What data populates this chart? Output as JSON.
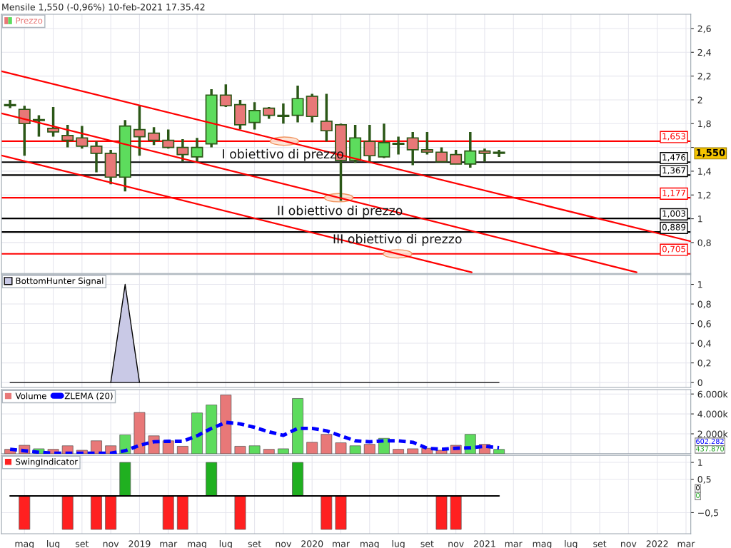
{
  "chart_data": [
    {
      "type": "candlestick",
      "title": "Mensile 1,550 (-0,96%) 10-feb-2021 17.35.42",
      "x": [
        "2018-04",
        "2018-05",
        "2018-06",
        "2018-07",
        "2018-08",
        "2018-09",
        "2018-10",
        "2018-11",
        "2018-12",
        "2019-01",
        "2019-02",
        "2019-03",
        "2019-04",
        "2019-05",
        "2019-06",
        "2019-07",
        "2019-08",
        "2019-09",
        "2019-10",
        "2019-11",
        "2019-12",
        "2020-01",
        "2020-02",
        "2020-03",
        "2020-04",
        "2020-05",
        "2020-06",
        "2020-07",
        "2020-08",
        "2020-09",
        "2020-10",
        "2020-11",
        "2020-12",
        "2021-01",
        "2021-02"
      ],
      "series": [
        {
          "type": "candlestick",
          "name": "Prezzo",
          "color": "#e87878",
          "ohlc": [
            [
              1.96,
              2.0,
              1.93,
              1.95
            ],
            [
              1.92,
              1.95,
              1.53,
              1.8
            ],
            [
              1.83,
              1.87,
              1.69,
              1.83
            ],
            [
              1.76,
              1.94,
              1.69,
              1.73
            ],
            [
              1.7,
              1.79,
              1.6,
              1.66
            ],
            [
              1.68,
              1.78,
              1.59,
              1.61
            ],
            [
              1.61,
              1.65,
              1.39,
              1.55
            ],
            [
              1.55,
              1.58,
              1.29,
              1.35
            ],
            [
              1.35,
              1.83,
              1.23,
              1.78
            ],
            [
              1.75,
              1.95,
              1.53,
              1.69
            ],
            [
              1.72,
              1.77,
              1.62,
              1.66
            ],
            [
              1.66,
              1.75,
              1.59,
              1.6
            ],
            [
              1.6,
              1.67,
              1.48,
              1.54
            ],
            [
              1.52,
              1.68,
              1.48,
              1.6
            ],
            [
              1.63,
              2.09,
              1.6,
              2.04
            ],
            [
              2.04,
              2.13,
              1.94,
              1.95
            ],
            [
              1.96,
              2.0,
              1.75,
              1.79
            ],
            [
              1.81,
              1.98,
              1.75,
              1.91
            ],
            [
              1.93,
              1.94,
              1.84,
              1.87
            ],
            [
              1.86,
              1.97,
              1.8,
              1.87
            ],
            [
              1.87,
              2.12,
              1.81,
              2.01
            ],
            [
              2.03,
              2.05,
              1.81,
              1.86
            ],
            [
              1.82,
              2.05,
              1.65,
              1.74
            ],
            [
              1.79,
              1.8,
              1.15,
              1.49
            ],
            [
              1.49,
              1.79,
              1.47,
              1.68
            ],
            [
              1.65,
              1.79,
              1.47,
              1.53
            ],
            [
              1.52,
              1.8,
              1.51,
              1.64
            ],
            [
              1.63,
              1.69,
              1.54,
              1.63
            ],
            [
              1.68,
              1.73,
              1.45,
              1.58
            ],
            [
              1.58,
              1.73,
              1.54,
              1.56
            ],
            [
              1.56,
              1.6,
              1.48,
              1.48
            ],
            [
              1.54,
              1.58,
              1.46,
              1.46
            ],
            [
              1.46,
              1.73,
              1.43,
              1.57
            ],
            [
              1.57,
              1.59,
              1.48,
              1.55
            ],
            [
              1.56,
              1.58,
              1.52,
              1.55
            ]
          ],
          "colors": [
            "#e87878",
            "#e87878",
            "#e87878",
            "#e87878",
            "#e87878",
            "#e87878",
            "#e87878",
            "#e87878",
            "#5ddc5d",
            "#e87878",
            "#e87878",
            "#e87878",
            "#e87878",
            "#5ddc5d",
            "#5ddc5d",
            "#e87878",
            "#e87878",
            "#5ddc5d",
            "#e87878",
            "#5ddc5d",
            "#5ddc5d",
            "#e87878",
            "#e87878",
            "#e87878",
            "#5ddc5d",
            "#e87878",
            "#5ddc5d",
            "#e87878",
            "#e87878",
            "#e87878",
            "#e87878",
            "#e87878",
            "#5ddc5d",
            "#e87878",
            "#e87878"
          ]
        },
        {
          "type": "line",
          "color": "#ff0000",
          "x": [
            "2018-03-13",
            "2022-03-11"
          ],
          "values": [
            2.24,
            0.81
          ]
        },
        {
          "type": "line",
          "color": "#ff0000",
          "x": [
            "2018-03-13",
            "2021-11-18"
          ],
          "values": [
            1.887,
            0.55
          ]
        },
        {
          "type": "line",
          "color": "#ff0000",
          "x": [
            "2018-03-13",
            "2020-12-04"
          ],
          "values": [
            1.533,
            0.55
          ]
        }
      ],
      "ref_lines": [
        {
          "axis": "y",
          "value": 1.653,
          "label": "1,653",
          "color": "#ff0000"
        },
        {
          "axis": "y",
          "value": 1.476,
          "label": "1,476",
          "color": "#000000"
        },
        {
          "axis": "y",
          "value": 1.367,
          "label": "1,367",
          "color": "#000000"
        },
        {
          "axis": "y",
          "value": 1.177,
          "label": "1,177",
          "color": "#ff0000"
        },
        {
          "axis": "y",
          "value": 1.003,
          "label": "1,003",
          "color": "#000000"
        },
        {
          "axis": "y",
          "value": 0.889,
          "label": "0,889",
          "color": "#000000"
        },
        {
          "axis": "y",
          "value": 0.705,
          "label": "0,705",
          "color": "#ff0000"
        }
      ],
      "annotations": [
        {
          "text": "I obiettivo di prezzo",
          "x": "2019-10-30",
          "y": 1.653
        },
        {
          "text": "II obiettivo di prezzo",
          "x": "2020-02-29",
          "y": 1.177
        },
        {
          "text": "III obiettivo di prezzo",
          "x": "2020-06-29",
          "y": 0.705
        },
        "1,550"
      ],
      "xlim": [
        "2018-03-13",
        "2022-03-11"
      ],
      "ylim": [
        0.54,
        2.72
      ],
      "yticks": [
        {
          "value": 0.8,
          "label": "0,8"
        },
        1,
        {
          "value": 1.2,
          "label": "1,2"
        },
        {
          "value": 1.4,
          "label": "1,4"
        },
        {
          "value": 1.6,
          "label": null
        },
        {
          "value": 1.8,
          "label": "1,8"
        },
        2,
        {
          "value": 2.2,
          "label": "2,2"
        },
        {
          "value": 2.4,
          "label": "2,4"
        },
        {
          "value": 2.6,
          "label": "2,6"
        }
      ],
      "tick_labels": "y",
      "grid": true,
      "legend": "top left"
    },
    {
      "type": "area",
      "x": [
        "2018-04",
        "2018-05",
        "2018-06",
        "2018-07",
        "2018-08",
        "2018-09",
        "2018-10",
        "2018-11",
        "2018-12",
        "2019-01",
        "2019-02",
        "2019-03",
        "2019-04",
        "2019-05",
        "2019-06",
        "2019-07",
        "2019-08",
        "2019-09",
        "2019-10",
        "2019-11",
        "2019-12",
        "2020-01",
        "2020-02",
        "2020-03",
        "2020-04",
        "2020-05",
        "2020-06",
        "2020-07",
        "2020-08",
        "2020-09",
        "2020-10",
        "2020-11",
        "2020-12",
        "2021-01",
        "2021-02"
      ],
      "series": [
        {
          "name": "BottomHunter Signal",
          "color": "#c9c9e6",
          "values": [
            0,
            0,
            0,
            0,
            0,
            0,
            0,
            0,
            1,
            0,
            0,
            0,
            0,
            0,
            0,
            0,
            0,
            0,
            0,
            0,
            0,
            0,
            0,
            0,
            0,
            0,
            0,
            0,
            0,
            0,
            0,
            0,
            0,
            0,
            0
          ]
        }
      ],
      "xlim": [
        "2018-03-13",
        "2022-03-11"
      ],
      "ylim": [
        -0.05,
        1.1
      ],
      "yticks": [
        0,
        {
          "value": 0.2,
          "label": "0,2"
        },
        {
          "value": 0.4,
          "label": "0,4"
        },
        {
          "value": 0.6,
          "label": "0,6"
        },
        {
          "value": 0.8,
          "label": "0,8"
        },
        1
      ],
      "tick_labels": "y",
      "grid": true,
      "legend": "top left"
    },
    {
      "type": "bar",
      "x": [
        "2018-04",
        "2018-05",
        "2018-06",
        "2018-07",
        "2018-08",
        "2018-09",
        "2018-10",
        "2018-11",
        "2018-12",
        "2019-01",
        "2019-02",
        "2019-03",
        "2019-04",
        "2019-05",
        "2019-06",
        "2019-07",
        "2019-08",
        "2019-09",
        "2019-10",
        "2019-11",
        "2019-12",
        "2020-01",
        "2020-02",
        "2020-03",
        "2020-04",
        "2020-05",
        "2020-06",
        "2020-07",
        "2020-08",
        "2020-09",
        "2020-10",
        "2020-11",
        "2020-12",
        "2021-01",
        "2021-02"
      ],
      "series": [
        {
          "type": "bar",
          "name": "Volume",
          "values": [
            450,
            850,
            500,
            450,
            800,
            350,
            1300,
            800,
            1900,
            4150,
            1800,
            1300,
            750,
            4100,
            4900,
            5900,
            750,
            800,
            450,
            500,
            5550,
            1150,
            1950,
            1100,
            800,
            950,
            1550,
            450,
            500,
            550,
            350,
            850,
            1950,
            950,
            437.87
          ],
          "colors": [
            "#e87878",
            "#e87878",
            "#5ddc5d",
            "#e87878",
            "#e87878",
            "#e87878",
            "#e87878",
            "#e87878",
            "#5ddc5d",
            "#e87878",
            "#e87878",
            "#e87878",
            "#e87878",
            "#5ddc5d",
            "#5ddc5d",
            "#e87878",
            "#e87878",
            "#5ddc5d",
            "#e87878",
            "#5ddc5d",
            "#5ddc5d",
            "#e87878",
            "#e87878",
            "#e87878",
            "#5ddc5d",
            "#e87878",
            "#5ddc5d",
            "#e87878",
            "#e87878",
            "#e87878",
            "#e87878",
            "#e87878",
            "#5ddc5d",
            "#e87878",
            "#5ddc5d"
          ]
        },
        {
          "type": "line",
          "name": "ZLEMA (20)",
          "color": "#0000ff",
          "line_style": "dashed",
          "values": [
            450,
            300,
            150,
            50,
            50,
            50,
            50,
            50,
            300,
            850,
            1200,
            1250,
            1250,
            1800,
            2550,
            3150,
            3000,
            2650,
            2200,
            1850,
            2550,
            2550,
            2300,
            1800,
            1300,
            1200,
            1300,
            1300,
            1150,
            550,
            450,
            550,
            600,
            750,
            602.282
          ]
        }
      ],
      "annotations": [
        "437.870",
        "602.282"
      ],
      "xlim": [
        "2018-03-13",
        "2022-03-11"
      ],
      "ylim": [
        0,
        6440
      ],
      "yticks": [
        {
          "value": 2000,
          "label": "2.000k"
        },
        {
          "value": 4000,
          "label": "4.000k"
        },
        {
          "value": 6000,
          "label": "6.000k"
        }
      ],
      "tick_labels": "y",
      "grid": true,
      "legend": "top left"
    },
    {
      "type": "bar",
      "x": [
        "2018-04",
        "2018-05",
        "2018-06",
        "2018-07",
        "2018-08",
        "2018-09",
        "2018-10",
        "2018-11",
        "2018-12",
        "2019-01",
        "2019-02",
        "2019-03",
        "2019-04",
        "2019-05",
        "2019-06",
        "2019-07",
        "2019-08",
        "2019-09",
        "2019-10",
        "2019-11",
        "2019-12",
        "2020-01",
        "2020-02",
        "2020-03",
        "2020-04",
        "2020-05",
        "2020-06",
        "2020-07",
        "2020-08",
        "2020-09",
        "2020-10",
        "2020-11",
        "2020-12",
        "2021-01",
        "2021-02"
      ],
      "series": [
        {
          "type": "line",
          "color": "#000000",
          "values": [
            0,
            0,
            0,
            0,
            0,
            0,
            0,
            0,
            0,
            0,
            0,
            0,
            0,
            0,
            0,
            0,
            0,
            0,
            0,
            0,
            0,
            0,
            0,
            0,
            0,
            0,
            0,
            0,
            0,
            0,
            0,
            0,
            0,
            0,
            0
          ]
        },
        {
          "type": "bar",
          "name": "SwingIndicator",
          "values": [
            0,
            -1,
            0,
            0,
            -1,
            0,
            -1,
            -1,
            1,
            0,
            0,
            -1,
            -1,
            0,
            1,
            0,
            -1,
            0,
            0,
            0,
            1,
            0,
            -1,
            -1,
            0,
            0,
            0,
            0,
            0,
            0,
            -1,
            -1,
            0,
            0,
            0
          ],
          "colors": [
            "#ff2020",
            "#ff2020",
            "#ff2020",
            "#ff2020",
            "#ff2020",
            "#ff2020",
            "#ff2020",
            "#ff2020",
            "#20b020",
            "#ff2020",
            "#ff2020",
            "#ff2020",
            "#ff2020",
            "#20b020",
            "#20b020",
            "#ff2020",
            "#ff2020",
            "#ff2020",
            "#ff2020",
            "#ff2020",
            "#20b020",
            "#ff2020",
            "#ff2020",
            "#ff2020",
            "#ff2020",
            "#ff2020",
            "#ff2020",
            "#ff2020",
            "#ff2020",
            "#ff2020",
            "#ff2020",
            "#ff2020",
            "#ff2020",
            "#ff2020",
            "#20b020"
          ]
        }
      ],
      "annotations": [
        "0",
        "0"
      ],
      "xlim": [
        "2018-03-13",
        "2022-03-11"
      ],
      "ylim": [
        -1.13,
        1.21
      ],
      "xticks": [
        {
          "value": "2018-05",
          "label": "mag"
        },
        {
          "value": "2018-07",
          "label": "lug"
        },
        {
          "value": "2018-09",
          "label": "set"
        },
        {
          "value": "2018-11",
          "label": "nov"
        },
        {
          "value": "2019-01",
          "label": "2019"
        },
        {
          "value": "2019-03",
          "label": "mar"
        },
        {
          "value": "2019-05",
          "label": "mag"
        },
        {
          "value": "2019-07",
          "label": "lug"
        },
        {
          "value": "2019-09",
          "label": "set"
        },
        {
          "value": "2019-11",
          "label": "nov"
        },
        {
          "value": "2020-01",
          "label": "2020"
        },
        {
          "value": "2020-03",
          "label": "mar"
        },
        {
          "value": "2020-05",
          "label": "mag"
        },
        {
          "value": "2020-07",
          "label": "lug"
        },
        {
          "value": "2020-09",
          "label": "set"
        },
        {
          "value": "2020-11",
          "label": "nov"
        },
        {
          "value": "2021-01",
          "label": "2021"
        },
        {
          "value": "2021-03",
          "label": "mar"
        },
        {
          "value": "2021-05",
          "label": "mag"
        },
        {
          "value": "2021-07",
          "label": "lug"
        },
        {
          "value": "2021-09",
          "label": "set"
        },
        {
          "value": "2021-11",
          "label": "nov"
        },
        {
          "value": "2022-01",
          "label": "2022"
        },
        {
          "value": "2022-03",
          "label": "mar"
        }
      ],
      "yticks": [
        {
          "value": -0.5,
          "label": "−0,5"
        },
        {
          "value": 0.5,
          "label": "0,5"
        },
        1
      ],
      "grid": true,
      "legend": "top left"
    }
  ]
}
